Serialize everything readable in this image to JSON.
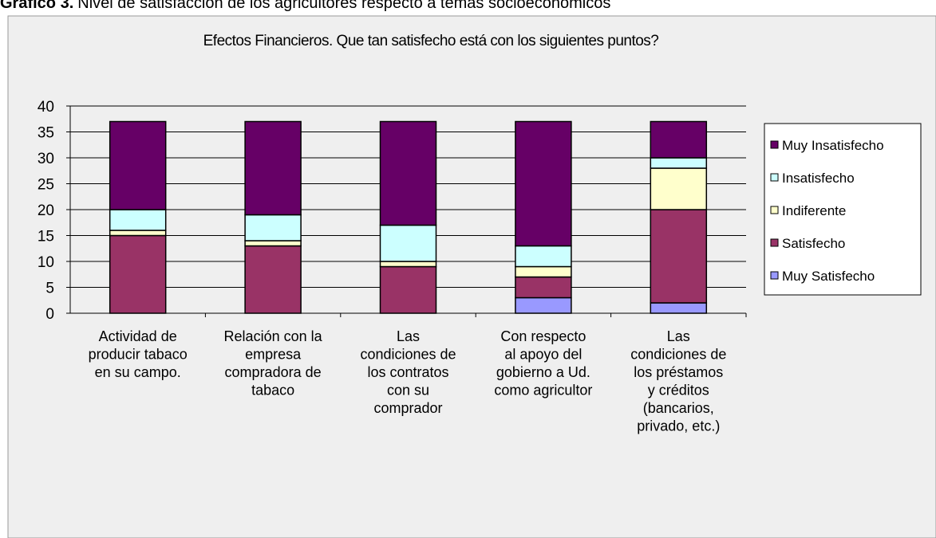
{
  "caption": {
    "label": "Gráfico 3.",
    "text": "Nivel de satisfacción de los agricultores respecto a temas socioeconómicos"
  },
  "chart_data": {
    "type": "stacked_bar",
    "title": "Efectos Financieros. Que tan satisfecho está con los siguientes puntos?",
    "categories": [
      [
        "Actividad de",
        "producir tabaco",
        "en su campo."
      ],
      [
        "Relación con la",
        "empresa",
        "compradora de",
        "tabaco"
      ],
      [
        "Las",
        "condiciones de",
        "los contratos",
        "con su",
        "comprador"
      ],
      [
        "Con respecto",
        "al apoyo del",
        "gobierno a Ud.",
        "como agricultor"
      ],
      [
        "Las",
        "condiciones de",
        "los préstamos",
        "y créditos",
        "(bancarios,",
        "privado, etc.)"
      ]
    ],
    "series": [
      {
        "name": "Muy Satisfecho",
        "color": "#9999ff",
        "values": [
          0,
          0,
          0,
          3,
          2
        ]
      },
      {
        "name": "Satisfecho",
        "color": "#993366",
        "values": [
          15,
          13,
          9,
          4,
          18
        ]
      },
      {
        "name": "Indiferente",
        "color": "#ffffcc",
        "values": [
          1,
          1,
          1,
          2,
          8
        ]
      },
      {
        "name": "Insatisfecho",
        "color": "#ccffff",
        "values": [
          4,
          5,
          7,
          4,
          2
        ]
      },
      {
        "name": "Muy Insatisfecho",
        "color": "#660066",
        "values": [
          17,
          18,
          20,
          24,
          7
        ]
      }
    ],
    "ylim": [
      0,
      40
    ],
    "yticks": [
      0,
      5,
      10,
      15,
      20,
      25,
      30,
      35,
      40
    ],
    "grid": true,
    "legend": "right"
  }
}
